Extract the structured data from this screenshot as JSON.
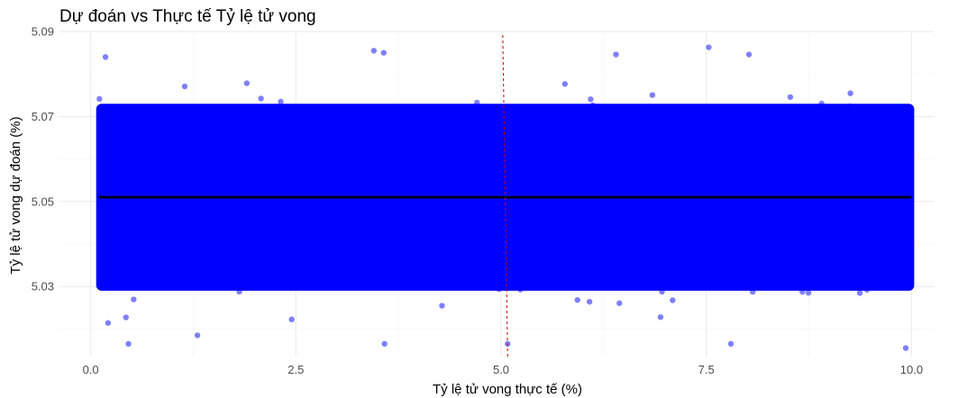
{
  "chart_data": {
    "type": "scatter",
    "title": "Dự đoán vs Thực tế Tỷ lệ tử vong",
    "xlabel": "Tỷ lệ tử vong thực tế (%)",
    "ylabel": "Tỷ lệ tử vong dự đoán (%)",
    "xlim": [
      -0.38,
      10.27
    ],
    "ylim": [
      5.0135,
      5.0898
    ],
    "x_ticks": [
      0.0,
      2.5,
      5.0,
      7.5,
      10.0
    ],
    "x_tick_labels": [
      "0.0",
      "2.5",
      "5.0",
      "7.5",
      "10.0"
    ],
    "y_ticks": [
      5.03,
      5.05,
      5.07,
      5.09
    ],
    "y_tick_labels": [
      "5.03",
      "5.05",
      "5.07",
      "5.09"
    ],
    "grid": true,
    "point_color": "#0000ff",
    "point_opacity": 0.5,
    "points_summary": {
      "x_range": [
        0.1,
        10.0
      ],
      "dense_band_y": [
        5.029,
        5.073
      ],
      "scattered_y_range": [
        5.016,
        5.086
      ],
      "distribution": "uniform in x, roughly normal around 5.051 in y"
    },
    "outliers": [
      {
        "x": 0.18,
        "y": 5.084
      },
      {
        "x": 3.45,
        "y": 5.0855
      },
      {
        "x": 3.57,
        "y": 5.085
      },
      {
        "x": 7.53,
        "y": 5.0863
      },
      {
        "x": 6.4,
        "y": 5.0846
      },
      {
        "x": 8.02,
        "y": 5.0846
      },
      {
        "x": 1.3,
        "y": 5.0185
      },
      {
        "x": 3.58,
        "y": 5.0165
      },
      {
        "x": 5.08,
        "y": 5.0165
      },
      {
        "x": 9.93,
        "y": 5.0155
      },
      {
        "x": 0.46,
        "y": 5.0165
      },
      {
        "x": 7.8,
        "y": 5.0165
      }
    ],
    "regression_line": {
      "x": [
        0.1,
        10.0
      ],
      "y": [
        5.051,
        5.051
      ],
      "color": "#000000"
    },
    "reference_line": {
      "x": [
        5.08,
        5.02
      ],
      "y": [
        5.0135,
        5.0898
      ],
      "color": "#cc0000",
      "style": "dashed"
    }
  }
}
